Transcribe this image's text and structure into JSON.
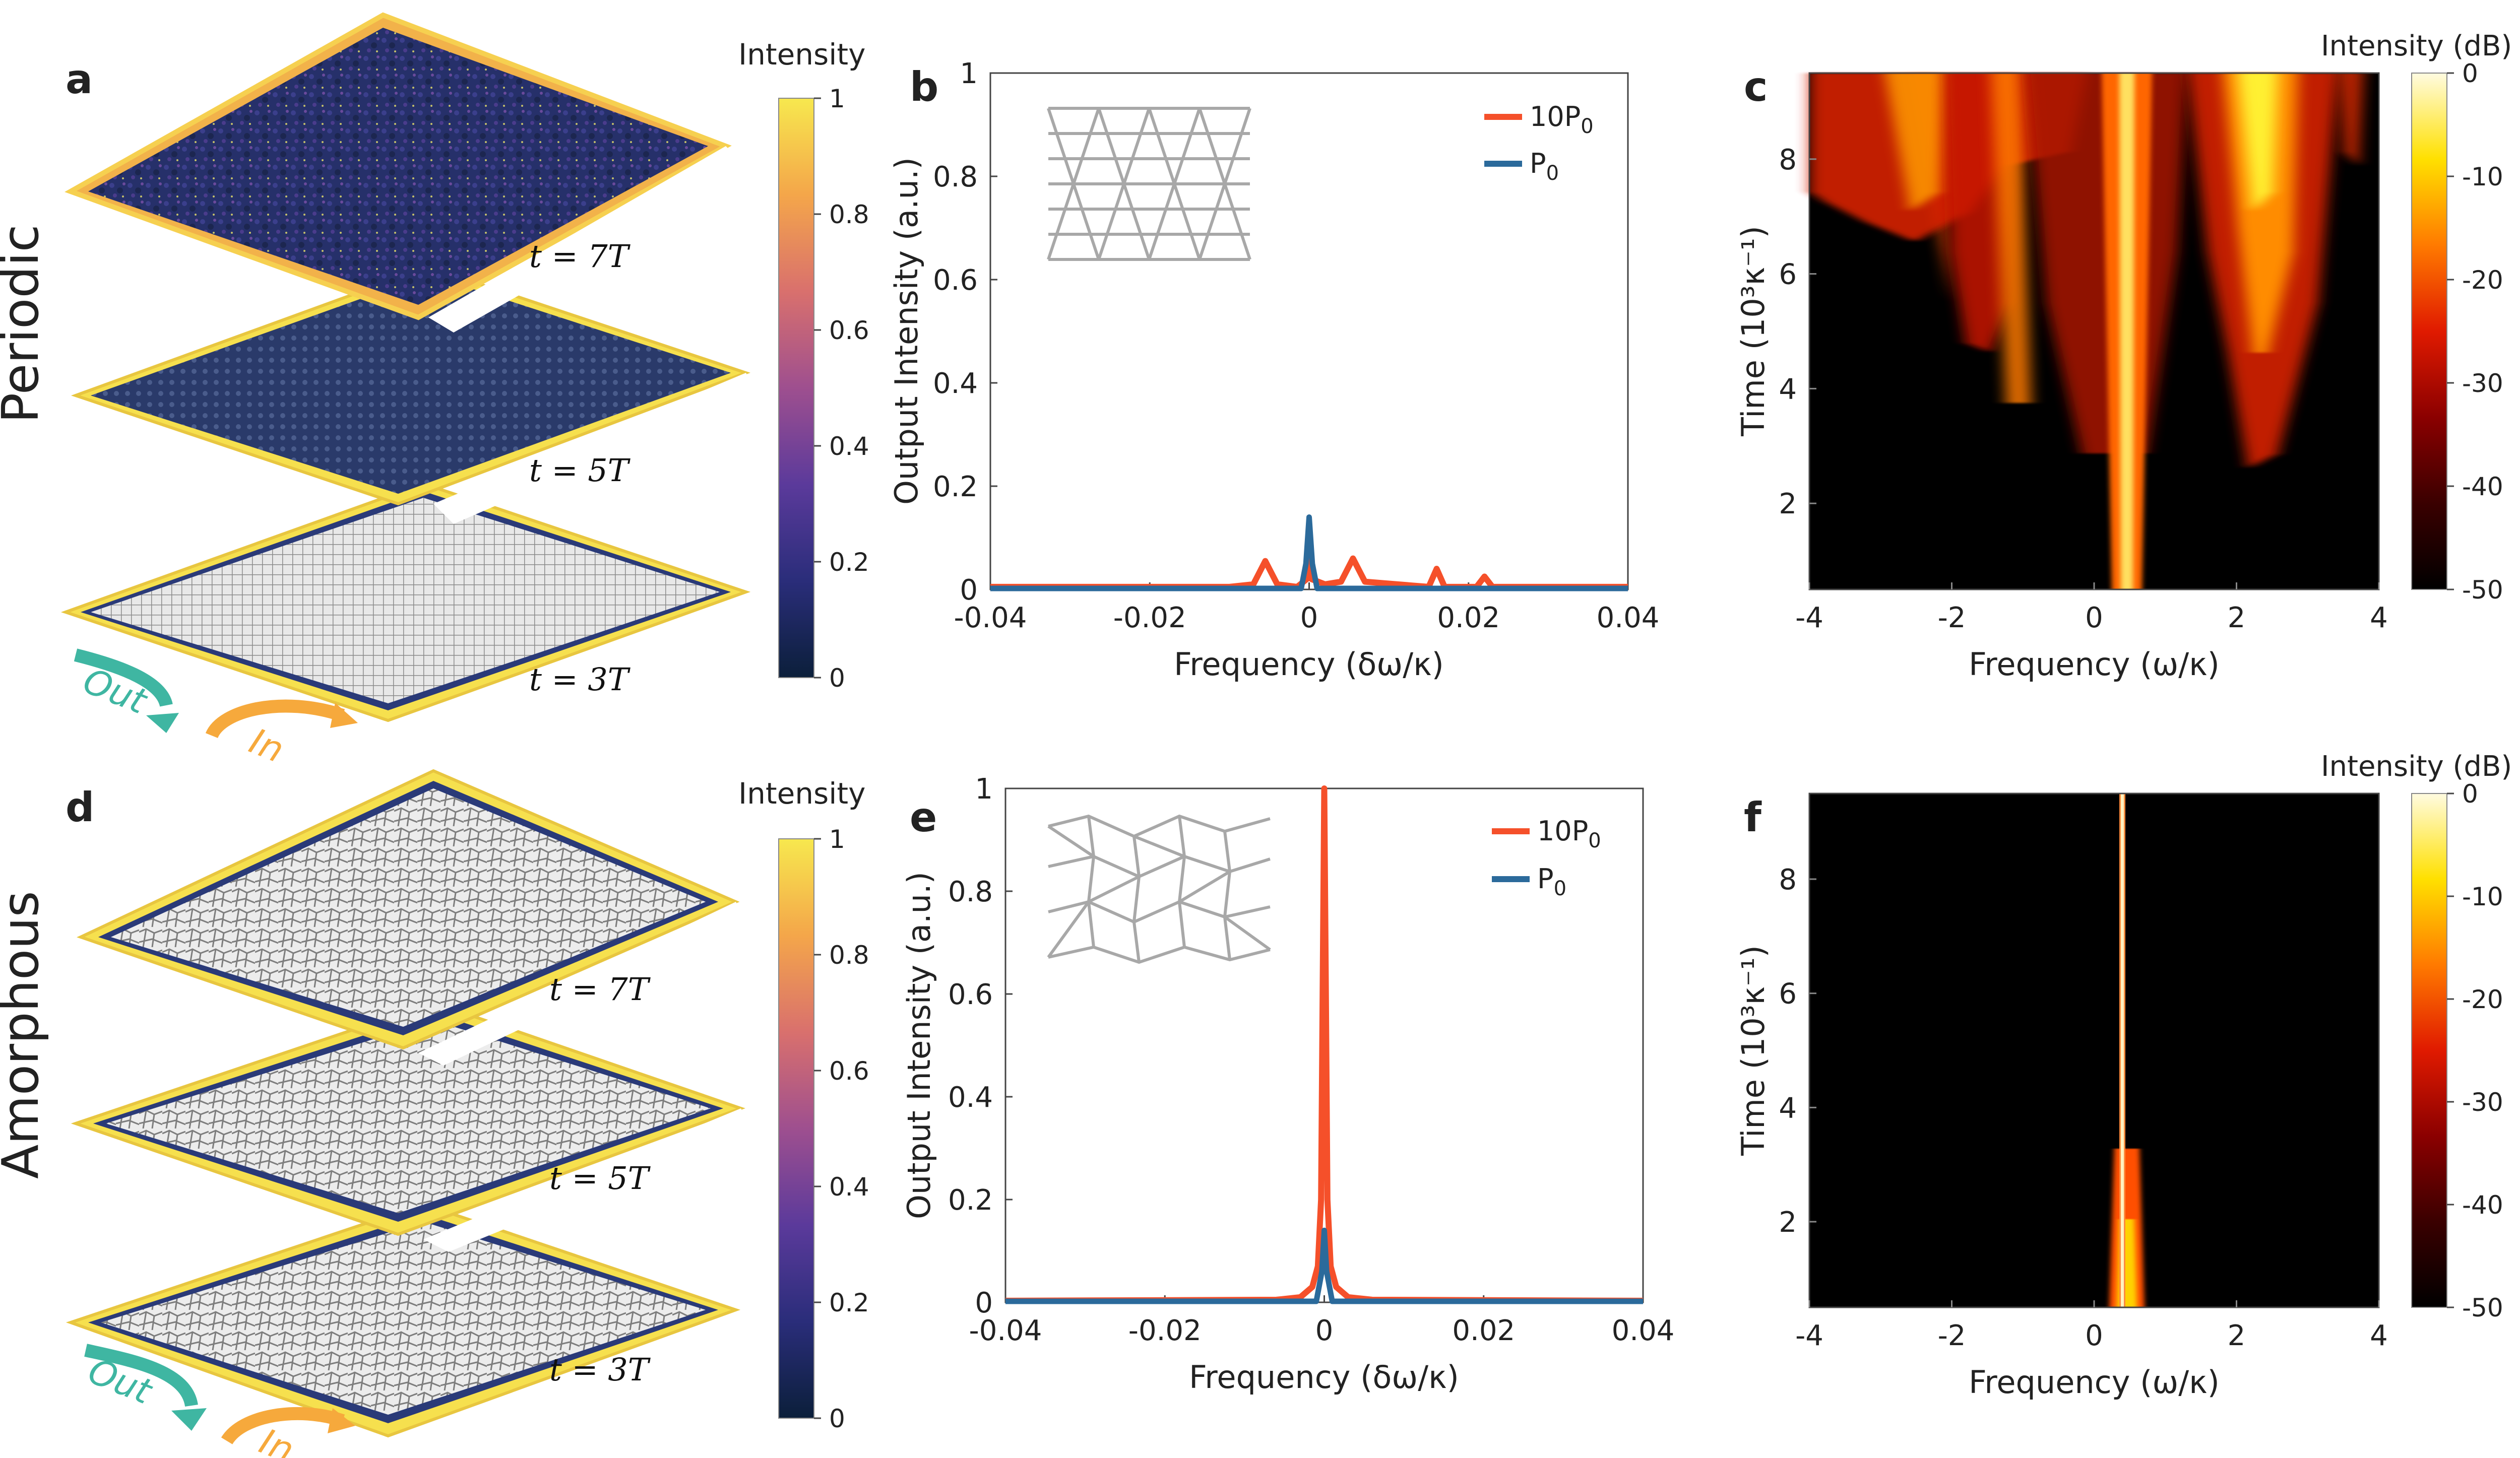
{
  "row_labels": {
    "top": "Periodic",
    "bottom": "Amorphous"
  },
  "panels": {
    "a": {
      "letter": "a",
      "time_labels": [
        "t = 7T",
        "t = 5T",
        "t = 3T"
      ],
      "out_label": "Out",
      "in_label": "In"
    },
    "b": {
      "letter": "b"
    },
    "c": {
      "letter": "c"
    },
    "d": {
      "letter": "d",
      "time_labels": [
        "t = 7T",
        "t = 5T",
        "t = 3T"
      ],
      "out_label": "Out",
      "in_label": "In"
    },
    "e": {
      "letter": "e"
    },
    "f": {
      "letter": "f"
    }
  },
  "colorbar_lattice": {
    "title": "Intensity",
    "ticks": [
      "0",
      "0.2",
      "0.4",
      "0.6",
      "0.8",
      "1"
    ],
    "colors": [
      "#0b1f3a",
      "#2a2d7a",
      "#5b3a9b",
      "#9e4f8f",
      "#d9706d",
      "#f4a64a",
      "#f7e84e"
    ]
  },
  "colorbar_db": {
    "title": "Intensity (dB)",
    "ticks": [
      "0",
      "-10",
      "-20",
      "-30",
      "-40",
      "-50"
    ],
    "colors": [
      "#000000",
      "#3a0000",
      "#8b0000",
      "#e01a00",
      "#ff7a00",
      "#ffe000",
      "#fffbe0"
    ]
  },
  "colors": {
    "orange": "#f5502a",
    "blue": "#2b6a9b",
    "teal": "#3fb6a2",
    "amber": "#f6a93c"
  },
  "chart_data": [
    {
      "panel": "b",
      "type": "line",
      "xlabel": "Frequency (δω/κ)",
      "ylabel": "Output Intensity (a.u.)",
      "xlim": [
        -0.04,
        0.04
      ],
      "ylim": [
        0,
        1
      ],
      "xticks": [
        "-0.04",
        "-0.02",
        "0",
        "0.02",
        "0.04"
      ],
      "yticks": [
        "0",
        "0.2",
        "0.4",
        "0.6",
        "0.8",
        "1"
      ],
      "legend_position": "top-right",
      "series": [
        {
          "name": "10P0",
          "color": "#f5502a",
          "x": [
            -0.04,
            -0.01,
            -0.007,
            -0.0055,
            -0.004,
            -0.0015,
            -0.0003,
            0,
            0.0003,
            0.002,
            0.004,
            0.0055,
            0.007,
            0.015,
            0.016,
            0.017,
            0.021,
            0.022,
            0.023,
            0.04
          ],
          "y": [
            0.005,
            0.005,
            0.01,
            0.055,
            0.01,
            0.005,
            0.02,
            0.07,
            0.02,
            0.01,
            0.015,
            0.06,
            0.015,
            0.005,
            0.04,
            0.005,
            0.005,
            0.025,
            0.005,
            0.005
          ]
        },
        {
          "name": "P0",
          "color": "#2b6a9b",
          "x": [
            -0.04,
            -0.001,
            -0.0004,
            0,
            0.0004,
            0.001,
            0.04
          ],
          "y": [
            0.002,
            0.002,
            0.05,
            0.14,
            0.05,
            0.002,
            0.002
          ]
        }
      ],
      "legend_labels": [
        "10P",
        "P"
      ],
      "legend_subscripts": [
        "0",
        "0"
      ]
    },
    {
      "panel": "e",
      "type": "line",
      "xlabel": "Frequency (δω/κ)",
      "ylabel": "Output Intensity (a.u.)",
      "xlim": [
        -0.04,
        0.04
      ],
      "ylim": [
        0,
        1
      ],
      "xticks": [
        "-0.04",
        "-0.02",
        "0",
        "0.02",
        "0.04"
      ],
      "yticks": [
        "0",
        "0.2",
        "0.4",
        "0.6",
        "0.8",
        "1"
      ],
      "legend_position": "top-right",
      "series": [
        {
          "name": "10P0",
          "color": "#f5502a",
          "x": [
            -0.04,
            -0.006,
            -0.003,
            -0.0015,
            -0.0008,
            -0.0004,
            -0.0002,
            0,
            0.0002,
            0.0004,
            0.0008,
            0.0015,
            0.003,
            0.006,
            0.04
          ],
          "y": [
            0.003,
            0.005,
            0.01,
            0.03,
            0.07,
            0.2,
            0.6,
            1.0,
            0.6,
            0.2,
            0.07,
            0.03,
            0.01,
            0.005,
            0.003
          ]
        },
        {
          "name": "P0",
          "color": "#2b6a9b",
          "x": [
            -0.04,
            -0.001,
            -0.0003,
            0,
            0.0003,
            0.001,
            0.04
          ],
          "y": [
            0.002,
            0.002,
            0.06,
            0.14,
            0.06,
            0.002,
            0.002
          ]
        }
      ],
      "legend_labels": [
        "10P",
        "P"
      ],
      "legend_subscripts": [
        "0",
        "0"
      ]
    },
    {
      "panel": "c",
      "type": "heatmap",
      "xlabel": "Frequency (ω/κ)",
      "ylabel": "Time (10³κ⁻¹)",
      "xlim": [
        -4,
        4
      ],
      "ylim": [
        0.5,
        9.5
      ],
      "xticks": [
        "-4",
        "-2",
        "0",
        "2",
        "4"
      ],
      "yticks": [
        "2",
        "4",
        "6",
        "8"
      ],
      "colorbar_range_db": [
        -50,
        0
      ],
      "features": [
        {
          "x": 0.4,
          "width": 0.25,
          "t_start": 0.5,
          "level_db": -5
        },
        {
          "x": 2.3,
          "width": 0.9,
          "t_start": 4.5,
          "level_db": -8
        },
        {
          "x": -1.7,
          "width": 1.2,
          "t_start": 5.5,
          "level_db": -20
        },
        {
          "x": -3.5,
          "width": 1.0,
          "t_start": 7.0,
          "level_db": -25
        }
      ]
    },
    {
      "panel": "f",
      "type": "heatmap",
      "xlabel": "Frequency (ω/κ)",
      "ylabel": "Time (10³κ⁻¹)",
      "xlim": [
        -4,
        4
      ],
      "ylim": [
        0.5,
        9.5
      ],
      "xticks": [
        "-4",
        "-2",
        "0",
        "2",
        "4"
      ],
      "yticks": [
        "2",
        "4",
        "6",
        "8"
      ],
      "colorbar_range_db": [
        -50,
        0
      ],
      "features": [
        {
          "x": 0.4,
          "width": 0.05,
          "t_start": 0.5,
          "level_db": 0
        },
        {
          "x": 0.4,
          "width": 0.35,
          "t_start": 0.5,
          "t_end": 2.3,
          "level_db": -15
        }
      ]
    }
  ]
}
